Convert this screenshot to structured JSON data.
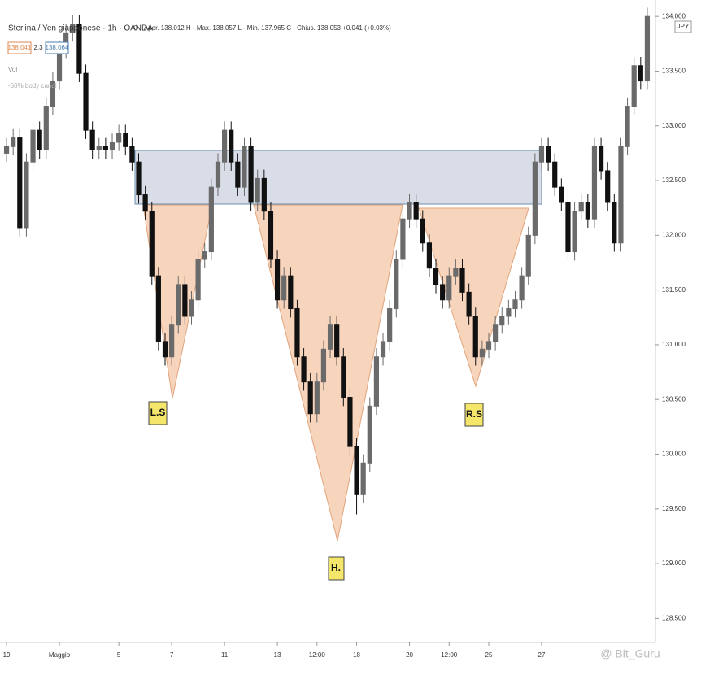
{
  "chart_data": {
    "type": "candlestick",
    "title": "Sterlina / Yen giapponese · 1h · OANDA",
    "ohlc_info": "O - Aper. 138.012 H - Max. 138.057 L - Min. 137.965 C - Chius. 138.053 +0.041 (+0.03%)",
    "bid": "138.041",
    "spread": "2.3",
    "ask": "138.064",
    "indicators": [
      "Vol",
      "-50% body candl"
    ],
    "currency": "JPY",
    "annotations": [
      "L.S",
      "H.",
      "R.S"
    ],
    "watermark": "@ Bit_Guru",
    "up_color": "#6a6a6a",
    "down_color": "#111111",
    "categories": [
      "19",
      null,
      null,
      null,
      null,
      null,
      null,
      null,
      "Maggio",
      null,
      null,
      null,
      null,
      null,
      null,
      null,
      null,
      "5",
      null,
      null,
      null,
      null,
      null,
      null,
      null,
      "7",
      null,
      null,
      null,
      null,
      null,
      null,
      null,
      "11",
      null,
      null,
      null,
      null,
      null,
      null,
      null,
      "13",
      null,
      null,
      null,
      null,
      null,
      "12:00",
      null,
      null,
      null,
      null,
      null,
      "18",
      null,
      null,
      null,
      null,
      null,
      null,
      null,
      "20",
      null,
      null,
      null,
      null,
      null,
      "12:00",
      null,
      null,
      null,
      null,
      null,
      "25",
      null,
      null,
      null,
      null,
      null,
      null,
      null,
      "27",
      null,
      null,
      null,
      null,
      null,
      null,
      null,
      null,
      null,
      null,
      null,
      null,
      null,
      null,
      null,
      null
    ],
    "open": [
      132.75,
      132.81,
      132.89,
      132.07,
      132.67,
      132.96,
      132.78,
      133.18,
      133.41,
      133.7,
      133.85,
      133.93,
      133.48,
      132.96,
      132.78,
      132.81,
      132.78,
      132.85,
      132.93,
      132.81,
      132.67,
      132.37,
      132.22,
      131.63,
      131.03,
      130.89,
      131.18,
      131.55,
      131.26,
      131.41,
      131.78,
      131.85,
      132.44,
      132.67,
      132.96,
      132.67,
      132.44,
      132.81,
      132.3,
      132.52,
      132.22,
      131.78,
      131.41,
      131.63,
      131.33,
      130.89,
      130.66,
      130.37,
      130.66,
      130.96,
      131.18,
      130.89,
      130.52,
      130.07,
      129.63,
      129.92,
      130.44,
      130.89,
      131.03,
      131.33,
      131.78,
      132.15,
      132.3,
      132.15,
      131.93,
      131.7,
      131.55,
      131.41,
      131.63,
      131.7,
      131.48,
      131.26,
      130.89,
      130.96,
      131.03,
      131.18,
      131.26,
      131.33,
      131.41,
      131.63,
      132.0,
      132.67,
      132.81,
      132.67,
      132.44,
      132.3,
      131.85,
      132.22,
      132.3,
      132.15,
      132.81,
      132.59,
      132.3,
      131.93,
      132.81,
      133.18,
      133.55,
      133.41
    ],
    "high": [
      132.89,
      132.97,
      132.97,
      132.75,
      133.04,
      133.04,
      133.26,
      133.49,
      133.78,
      133.93,
      134.01,
      134.01,
      133.56,
      133.04,
      132.89,
      132.89,
      132.93,
      133.01,
      133.01,
      132.89,
      132.75,
      132.45,
      132.3,
      131.71,
      131.11,
      131.26,
      131.63,
      131.63,
      131.49,
      131.86,
      131.93,
      132.52,
      132.75,
      133.04,
      133.04,
      132.75,
      132.89,
      132.89,
      132.6,
      132.6,
      132.3,
      131.86,
      131.71,
      131.71,
      131.41,
      130.97,
      130.74,
      130.74,
      131.04,
      131.26,
      131.26,
      130.97,
      130.6,
      130.15,
      130.0,
      130.52,
      130.97,
      131.11,
      131.41,
      131.86,
      132.23,
      132.38,
      132.38,
      132.23,
      132.01,
      131.78,
      131.63,
      131.71,
      131.78,
      131.78,
      131.56,
      131.34,
      131.04,
      131.11,
      131.26,
      131.34,
      131.41,
      131.49,
      131.71,
      132.08,
      132.75,
      132.89,
      132.89,
      132.75,
      132.52,
      132.38,
      132.3,
      132.38,
      132.38,
      132.89,
      132.89,
      132.67,
      132.38,
      132.89,
      133.26,
      133.63,
      133.63,
      134.08
    ],
    "low": [
      132.67,
      132.73,
      131.99,
      131.99,
      132.59,
      132.7,
      132.7,
      133.1,
      133.33,
      133.62,
      133.77,
      133.4,
      132.88,
      132.7,
      132.7,
      132.7,
      132.7,
      132.77,
      132.73,
      132.59,
      132.29,
      132.14,
      131.55,
      130.95,
      130.81,
      130.81,
      131.1,
      131.18,
      131.18,
      131.33,
      131.7,
      131.77,
      132.36,
      132.59,
      132.59,
      132.36,
      132.36,
      132.22,
      132.22,
      132.14,
      131.7,
      131.33,
      131.33,
      131.25,
      130.81,
      130.58,
      130.29,
      130.29,
      130.58,
      130.88,
      130.81,
      130.44,
      129.99,
      129.45,
      129.55,
      129.84,
      130.36,
      130.81,
      130.95,
      131.25,
      131.7,
      132.07,
      132.07,
      131.85,
      131.62,
      131.47,
      131.33,
      131.33,
      131.55,
      131.4,
      131.18,
      130.81,
      130.81,
      130.88,
      130.95,
      131.1,
      131.18,
      131.25,
      131.33,
      131.55,
      131.92,
      132.59,
      132.59,
      132.36,
      132.22,
      131.77,
      131.77,
      132.14,
      132.07,
      132.07,
      132.51,
      132.22,
      131.85,
      131.85,
      132.73,
      133.1,
      133.33,
      133.33
    ],
    "close": [
      132.81,
      132.89,
      132.07,
      132.67,
      132.96,
      132.78,
      133.18,
      133.41,
      133.7,
      133.85,
      133.93,
      133.48,
      132.96,
      132.78,
      132.81,
      132.78,
      132.85,
      132.93,
      132.81,
      132.67,
      132.37,
      132.22,
      131.63,
      131.03,
      130.89,
      131.18,
      131.55,
      131.26,
      131.41,
      131.78,
      131.85,
      132.44,
      132.67,
      132.96,
      132.67,
      132.44,
      132.81,
      132.3,
      132.52,
      132.22,
      131.78,
      131.41,
      131.63,
      131.33,
      130.89,
      130.66,
      130.37,
      130.66,
      130.96,
      131.18,
      130.89,
      130.52,
      130.07,
      129.63,
      129.92,
      130.44,
      130.89,
      131.03,
      131.33,
      131.78,
      132.15,
      132.3,
      132.15,
      131.93,
      131.7,
      131.55,
      131.41,
      131.63,
      131.7,
      131.48,
      131.26,
      130.89,
      130.96,
      131.03,
      131.18,
      131.26,
      131.33,
      131.41,
      131.63,
      132.0,
      132.67,
      132.81,
      132.67,
      132.44,
      132.3,
      131.85,
      132.22,
      132.3,
      132.15,
      132.81,
      132.59,
      132.3,
      131.93,
      132.81,
      133.18,
      133.55,
      133.41,
      134.0
    ],
    "ylim": [
      128.28,
      134.15
    ],
    "yticks": [
      {
        "value": 128.5,
        "label": "128.500"
      },
      {
        "value": 129,
        "label": "129.000"
      },
      {
        "value": 129.5,
        "label": "129.500"
      },
      {
        "value": 130,
        "label": "130.000"
      },
      {
        "value": 130.5,
        "label": "130.500"
      },
      {
        "value": 131,
        "label": "131.000"
      },
      {
        "value": 131.5,
        "label": "131.500"
      },
      {
        "value": 132,
        "label": "132.000"
      },
      {
        "value": 132.5,
        "label": "132.500"
      },
      {
        "value": 133,
        "label": "133.000"
      },
      {
        "value": 133.5,
        "label": "133.500"
      },
      {
        "value": 134,
        "label": "134.000"
      }
    ]
  }
}
